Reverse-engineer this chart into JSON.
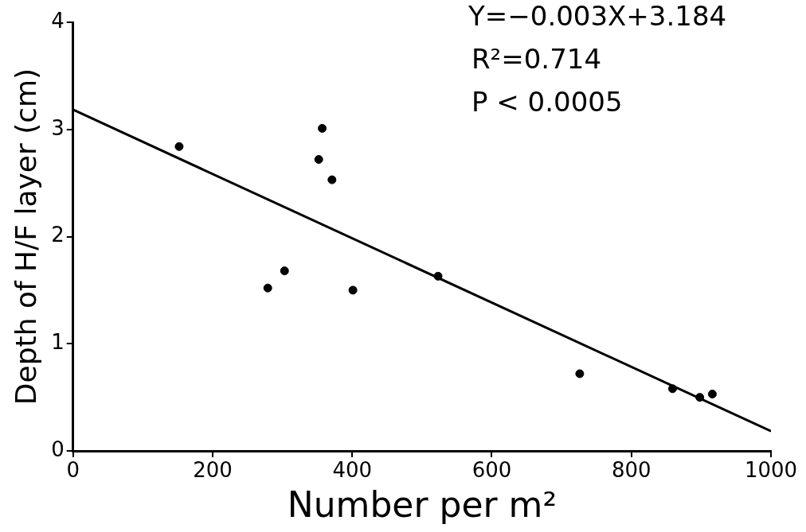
{
  "chart_data": {
    "type": "scatter",
    "xlabel": "Number per m²",
    "ylabel": "Depth of H/F layer (cm)",
    "annotations": [
      "Y=−0.003X+3.184",
      "R²=0.714",
      "P < 0.0005"
    ],
    "xlim": [
      0,
      1000
    ],
    "xticks": [
      0,
      200,
      400,
      600,
      800,
      1000
    ],
    "ylim": [
      0,
      4
    ],
    "yticks": [
      0,
      1,
      2,
      3,
      4
    ],
    "grid": false,
    "legend": false,
    "marker": "circle",
    "series": [
      {
        "color": "#000000",
        "x": [
          152,
          279,
          303,
          352,
          357,
          371,
          401,
          523,
          726,
          859,
          898,
          916
        ],
        "values": [
          2.84,
          1.52,
          1.68,
          2.72,
          3.01,
          2.53,
          1.5,
          1.63,
          0.72,
          0.58,
          0.5,
          0.53
        ]
      },
      {
        "type": "line",
        "color": "#000000",
        "marker": "none",
        "line_style": "solid",
        "x": [
          0,
          1000
        ],
        "values": [
          3.184,
          0.184
        ]
      }
    ]
  }
}
